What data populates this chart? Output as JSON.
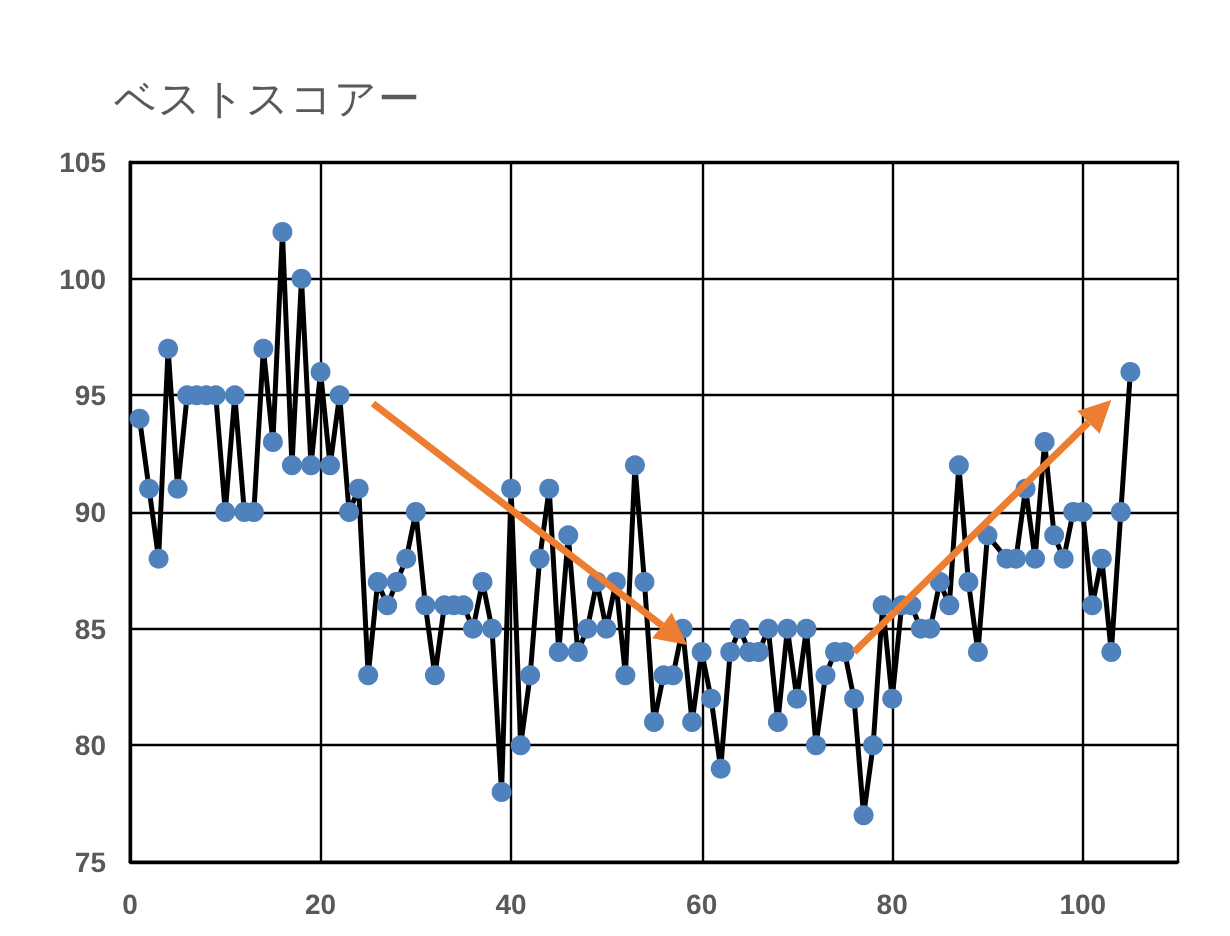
{
  "chart_data": {
    "type": "line",
    "title": "ベストスコアー",
    "x": [
      1,
      2,
      3,
      4,
      5,
      6,
      7,
      8,
      9,
      10,
      11,
      12,
      13,
      14,
      15,
      16,
      17,
      18,
      19,
      20,
      21,
      22,
      23,
      24,
      25,
      26,
      27,
      28,
      29,
      30,
      31,
      32,
      33,
      34,
      35,
      36,
      37,
      38,
      39,
      40,
      41,
      42,
      43,
      44,
      45,
      46,
      47,
      48,
      49,
      50,
      51,
      52,
      53,
      54,
      55,
      56,
      57,
      58,
      59,
      60,
      61,
      62,
      63,
      64,
      65,
      66,
      67,
      68,
      69,
      70,
      71,
      72,
      73,
      74,
      75,
      76,
      77,
      78,
      79,
      80,
      81,
      82,
      83,
      84,
      85,
      86,
      87,
      88,
      89,
      90,
      92,
      93,
      94,
      95,
      96,
      97,
      98,
      99,
      100,
      101,
      102,
      103,
      104,
      105
    ],
    "series": [
      {
        "color": "#4f81bd",
        "values": [
          94,
          91,
          88,
          97,
          91,
          95,
          95,
          95,
          95,
          90,
          95,
          90,
          90,
          97,
          93,
          102,
          92,
          100,
          92,
          96,
          92,
          95,
          90,
          91,
          83,
          87,
          86,
          87,
          88,
          90,
          86,
          83,
          86,
          86,
          86,
          85,
          87,
          85,
          78,
          91,
          80,
          83,
          88,
          91,
          84,
          89,
          84,
          85,
          87,
          85,
          87,
          83,
          92,
          87,
          81,
          83,
          83,
          85,
          81,
          84,
          82,
          79,
          84,
          85,
          84,
          84,
          85,
          81,
          85,
          82,
          85,
          80,
          83,
          84,
          84,
          82,
          77,
          80,
          86,
          82,
          86,
          86,
          85,
          85,
          87,
          86,
          92,
          87,
          84,
          89,
          88,
          88,
          91,
          88,
          93,
          89,
          88,
          90,
          90,
          86,
          88,
          84,
          90,
          96
        ]
      }
    ],
    "xlim": [
      0,
      110
    ],
    "xticks": [
      0,
      20,
      40,
      60,
      80,
      100
    ],
    "ylim": [
      75,
      105
    ],
    "yticks": [
      75,
      80,
      85,
      90,
      95,
      100,
      105
    ],
    "grid": true,
    "marker": "circle",
    "line_style": "solid"
  }
}
